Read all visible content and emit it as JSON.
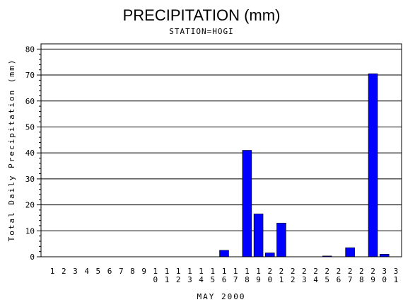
{
  "chart_data": {
    "type": "bar",
    "title": "PRECIPITATION (mm)",
    "subtitle": "STATION=HOGI",
    "xlabel": "MAY 2000",
    "ylabel": "Total Daily Precipitation (mm)",
    "ylim": [
      0,
      82
    ],
    "yticks": [
      0,
      10,
      20,
      30,
      40,
      50,
      60,
      70,
      80
    ],
    "grid": true,
    "bar_color": "#0000ff",
    "categories": [
      "1",
      "2",
      "3",
      "4",
      "5",
      "6",
      "7",
      "8",
      "9",
      "10",
      "11",
      "12",
      "13",
      "14",
      "15",
      "16",
      "17",
      "18",
      "19",
      "20",
      "21",
      "22",
      "23",
      "24",
      "25",
      "26",
      "27",
      "28",
      "29",
      "30",
      "31"
    ],
    "values": [
      0,
      0,
      0,
      0,
      0,
      0,
      0,
      0,
      0,
      0,
      0,
      0,
      0,
      0,
      0,
      2.5,
      0,
      41,
      16.5,
      1.5,
      13,
      0,
      0,
      0,
      0.3,
      0,
      3.5,
      0,
      70.5,
      1,
      0
    ]
  }
}
